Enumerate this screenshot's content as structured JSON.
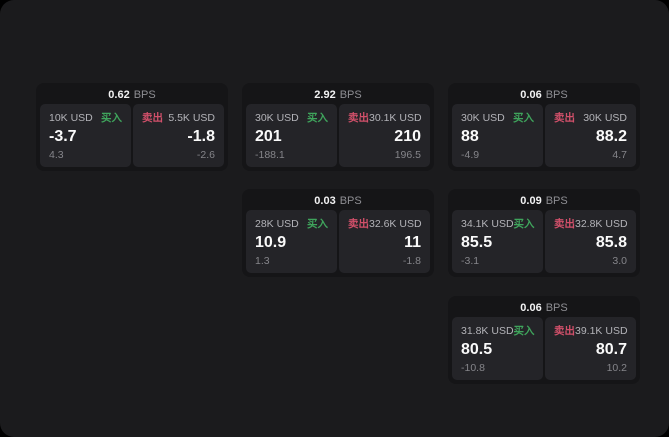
{
  "labels": {
    "bps_unit": "BPS",
    "buy": "买入",
    "sell": "卖出"
  },
  "colors": {
    "panel_bg": "#1b1b1d",
    "card_bg": "#151517",
    "subcard_bg": "#242428",
    "buy_green": "#3fa45c",
    "sell_red": "#d1506a",
    "primary_text": "#fafafa",
    "muted_text": "#85858a"
  },
  "cards": [
    {
      "bps": "0.62",
      "buy": {
        "notional": "10K USD",
        "price": "-3.7",
        "delta": "4.3"
      },
      "sell": {
        "notional": "5.5K USD",
        "price": "-1.8",
        "delta": "-2.6"
      }
    },
    {
      "bps": "2.92",
      "buy": {
        "notional": "30K USD",
        "price": "201",
        "delta": "-188.1"
      },
      "sell": {
        "notional": "30.1K USD",
        "price": "210",
        "delta": "196.5"
      }
    },
    {
      "bps": "0.06",
      "buy": {
        "notional": "30K USD",
        "price": "88",
        "delta": "-4.9"
      },
      "sell": {
        "notional": "30K USD",
        "price": "88.2",
        "delta": "4.7"
      }
    },
    {
      "bps": "0.03",
      "buy": {
        "notional": "28K USD",
        "price": "10.9",
        "delta": "1.3"
      },
      "sell": {
        "notional": "32.6K USD",
        "price": "11",
        "delta": "-1.8"
      }
    },
    {
      "bps": "0.09",
      "buy": {
        "notional": "34.1K USD",
        "price": "85.5",
        "delta": "-3.1"
      },
      "sell": {
        "notional": "32.8K USD",
        "price": "85.8",
        "delta": "3.0"
      }
    },
    {
      "bps": "0.06",
      "buy": {
        "notional": "31.8K USD",
        "price": "80.5",
        "delta": "-10.8"
      },
      "sell": {
        "notional": "39.1K USD",
        "price": "80.7",
        "delta": "10.2"
      }
    }
  ]
}
